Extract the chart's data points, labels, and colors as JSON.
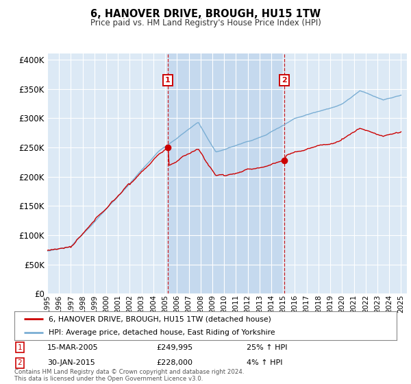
{
  "title": "6, HANOVER DRIVE, BROUGH, HU15 1TW",
  "subtitle": "Price paid vs. HM Land Registry's House Price Index (HPI)",
  "background_color": "#ffffff",
  "plot_bg_color": "#dce9f5",
  "shade_color": "#c5d9ee",
  "grid_color": "#ffffff",
  "red_line_color": "#cc0000",
  "blue_line_color": "#7aaed4",
  "sale1_price": 249995,
  "sale2_price": 228000,
  "sale1_x": 2005.21,
  "sale2_x": 2015.08,
  "footer": "Contains HM Land Registry data © Crown copyright and database right 2024.\nThis data is licensed under the Open Government Licence v3.0.",
  "legend_line1": "6, HANOVER DRIVE, BROUGH, HU15 1TW (detached house)",
  "legend_line2": "HPI: Average price, detached house, East Riding of Yorkshire",
  "sale1_date_str": "15-MAR-2005",
  "sale2_date_str": "30-JAN-2015",
  "sale1_label": "25% ↑ HPI",
  "sale2_label": "4% ↑ HPI"
}
